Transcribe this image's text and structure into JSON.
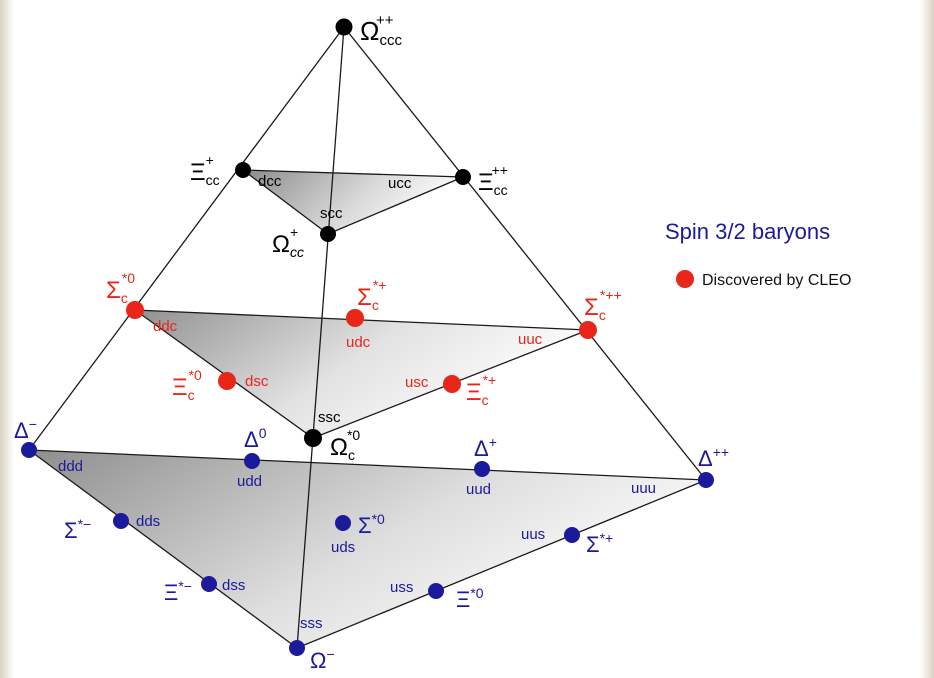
{
  "title": "Spin 3/2 baryons",
  "legend": {
    "label": "Discovered by CLEO",
    "color": "#e8261a"
  },
  "colors": {
    "black": "#000000",
    "red": "#e8261a",
    "blue": "#1a1a9a"
  },
  "particles": {
    "omega_ccc": {
      "sym": "Ω",
      "sub": "ccc",
      "sup": "++"
    },
    "xi_cc_plus": {
      "sym": "Ξ",
      "sub": "cc",
      "sup": "+"
    },
    "xi_cc_pp": {
      "sym": "Ξ",
      "sub": "cc",
      "sup": "++"
    },
    "omega_cc": {
      "sym": "Ω",
      "sub": "cc",
      "sup": "+"
    },
    "sigma_c0": {
      "sym": "Σ",
      "sub": "c",
      "sup": "*0"
    },
    "sigma_cp": {
      "sym": "Σ",
      "sub": "c",
      "sup": "*+"
    },
    "sigma_cpp": {
      "sym": "Σ",
      "sub": "c",
      "sup": "*++"
    },
    "xi_c0": {
      "sym": "Ξ",
      "sub": "c",
      "sup": "*0"
    },
    "xi_cp": {
      "sym": "Ξ",
      "sub": "c",
      "sup": "*+"
    },
    "omega_c0": {
      "sym": "Ω",
      "sub": "c",
      "sup": "*0"
    },
    "delta_m": {
      "sym": "Δ",
      "sub": "",
      "sup": "−"
    },
    "delta_0": {
      "sym": "Δ",
      "sub": "",
      "sup": "0"
    },
    "delta_p": {
      "sym": "Δ",
      "sub": "",
      "sup": "+"
    },
    "delta_pp": {
      "sym": "Δ",
      "sub": "",
      "sup": "++"
    },
    "sigma_m": {
      "sym": "Σ",
      "sub": "",
      "sup": "*−"
    },
    "sigma_0": {
      "sym": "Σ",
      "sub": "",
      "sup": "*0"
    },
    "sigma_p": {
      "sym": "Σ",
      "sub": "",
      "sup": "*+"
    },
    "xi_m": {
      "sym": "Ξ",
      "sub": "",
      "sup": "*−"
    },
    "xi_0": {
      "sym": "Ξ",
      "sub": "",
      "sup": "*0"
    },
    "omega_m": {
      "sym": "Ω",
      "sub": "",
      "sup": "−"
    }
  },
  "quarks": {
    "dcc": "dcc",
    "ucc": "ucc",
    "scc": "scc",
    "ddc": "ddc",
    "udc": "udc",
    "uuc": "uuc",
    "dsc": "dsc",
    "usc": "usc",
    "ssc": "ssc",
    "ddd": "ddd",
    "udd": "udd",
    "uud": "uud",
    "uuu": "uuu",
    "dds": "dds",
    "uds": "uds",
    "uus": "uus",
    "dss": "dss",
    "uss": "uss",
    "sss": "sss"
  }
}
